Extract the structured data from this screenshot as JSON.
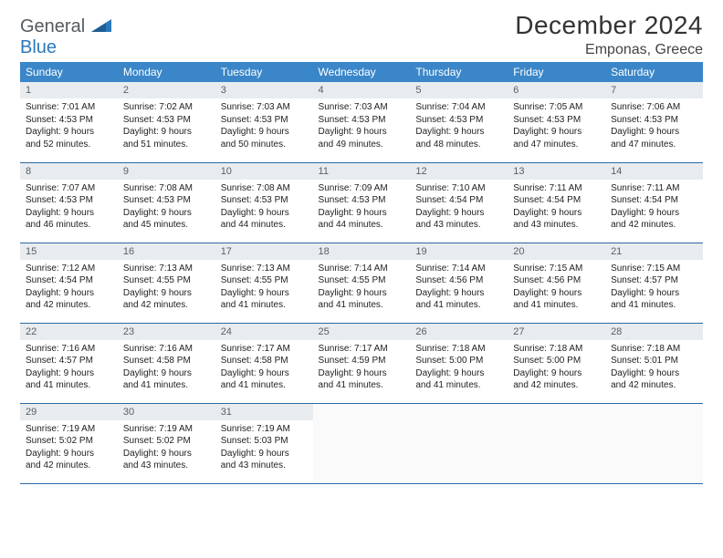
{
  "logo": {
    "part1": "General",
    "part2": "Blue"
  },
  "title": "December 2024",
  "location": "Emponas, Greece",
  "colors": {
    "header_bg": "#3a86c8",
    "header_text": "#ffffff",
    "daynum_bg": "#e9ecef",
    "daynum_text": "#5a5f64",
    "body_text": "#222222",
    "row_border": "#2a6aa3",
    "logo_gray": "#555a5e",
    "logo_blue": "#2b78bd",
    "background": "#ffffff"
  },
  "day_headers": [
    "Sunday",
    "Monday",
    "Tuesday",
    "Wednesday",
    "Thursday",
    "Friday",
    "Saturday"
  ],
  "weeks": [
    [
      {
        "n": "1",
        "sr": "7:01 AM",
        "ss": "4:53 PM",
        "dh": "9",
        "dm": "52"
      },
      {
        "n": "2",
        "sr": "7:02 AM",
        "ss": "4:53 PM",
        "dh": "9",
        "dm": "51"
      },
      {
        "n": "3",
        "sr": "7:03 AM",
        "ss": "4:53 PM",
        "dh": "9",
        "dm": "50"
      },
      {
        "n": "4",
        "sr": "7:03 AM",
        "ss": "4:53 PM",
        "dh": "9",
        "dm": "49"
      },
      {
        "n": "5",
        "sr": "7:04 AM",
        "ss": "4:53 PM",
        "dh": "9",
        "dm": "48"
      },
      {
        "n": "6",
        "sr": "7:05 AM",
        "ss": "4:53 PM",
        "dh": "9",
        "dm": "47"
      },
      {
        "n": "7",
        "sr": "7:06 AM",
        "ss": "4:53 PM",
        "dh": "9",
        "dm": "47"
      }
    ],
    [
      {
        "n": "8",
        "sr": "7:07 AM",
        "ss": "4:53 PM",
        "dh": "9",
        "dm": "46"
      },
      {
        "n": "9",
        "sr": "7:08 AM",
        "ss": "4:53 PM",
        "dh": "9",
        "dm": "45"
      },
      {
        "n": "10",
        "sr": "7:08 AM",
        "ss": "4:53 PM",
        "dh": "9",
        "dm": "44"
      },
      {
        "n": "11",
        "sr": "7:09 AM",
        "ss": "4:53 PM",
        "dh": "9",
        "dm": "44"
      },
      {
        "n": "12",
        "sr": "7:10 AM",
        "ss": "4:54 PM",
        "dh": "9",
        "dm": "43"
      },
      {
        "n": "13",
        "sr": "7:11 AM",
        "ss": "4:54 PM",
        "dh": "9",
        "dm": "43"
      },
      {
        "n": "14",
        "sr": "7:11 AM",
        "ss": "4:54 PM",
        "dh": "9",
        "dm": "42"
      }
    ],
    [
      {
        "n": "15",
        "sr": "7:12 AM",
        "ss": "4:54 PM",
        "dh": "9",
        "dm": "42"
      },
      {
        "n": "16",
        "sr": "7:13 AM",
        "ss": "4:55 PM",
        "dh": "9",
        "dm": "42"
      },
      {
        "n": "17",
        "sr": "7:13 AM",
        "ss": "4:55 PM",
        "dh": "9",
        "dm": "41"
      },
      {
        "n": "18",
        "sr": "7:14 AM",
        "ss": "4:55 PM",
        "dh": "9",
        "dm": "41"
      },
      {
        "n": "19",
        "sr": "7:14 AM",
        "ss": "4:56 PM",
        "dh": "9",
        "dm": "41"
      },
      {
        "n": "20",
        "sr": "7:15 AM",
        "ss": "4:56 PM",
        "dh": "9",
        "dm": "41"
      },
      {
        "n": "21",
        "sr": "7:15 AM",
        "ss": "4:57 PM",
        "dh": "9",
        "dm": "41"
      }
    ],
    [
      {
        "n": "22",
        "sr": "7:16 AM",
        "ss": "4:57 PM",
        "dh": "9",
        "dm": "41"
      },
      {
        "n": "23",
        "sr": "7:16 AM",
        "ss": "4:58 PM",
        "dh": "9",
        "dm": "41"
      },
      {
        "n": "24",
        "sr": "7:17 AM",
        "ss": "4:58 PM",
        "dh": "9",
        "dm": "41"
      },
      {
        "n": "25",
        "sr": "7:17 AM",
        "ss": "4:59 PM",
        "dh": "9",
        "dm": "41"
      },
      {
        "n": "26",
        "sr": "7:18 AM",
        "ss": "5:00 PM",
        "dh": "9",
        "dm": "41"
      },
      {
        "n": "27",
        "sr": "7:18 AM",
        "ss": "5:00 PM",
        "dh": "9",
        "dm": "42"
      },
      {
        "n": "28",
        "sr": "7:18 AM",
        "ss": "5:01 PM",
        "dh": "9",
        "dm": "42"
      }
    ],
    [
      {
        "n": "29",
        "sr": "7:19 AM",
        "ss": "5:02 PM",
        "dh": "9",
        "dm": "42"
      },
      {
        "n": "30",
        "sr": "7:19 AM",
        "ss": "5:02 PM",
        "dh": "9",
        "dm": "43"
      },
      {
        "n": "31",
        "sr": "7:19 AM",
        "ss": "5:03 PM",
        "dh": "9",
        "dm": "43"
      },
      null,
      null,
      null,
      null
    ]
  ],
  "labels": {
    "sunrise": "Sunrise:",
    "sunset": "Sunset:",
    "daylight": "Daylight:",
    "hours": "hours",
    "and": "and",
    "minutes": "minutes."
  }
}
